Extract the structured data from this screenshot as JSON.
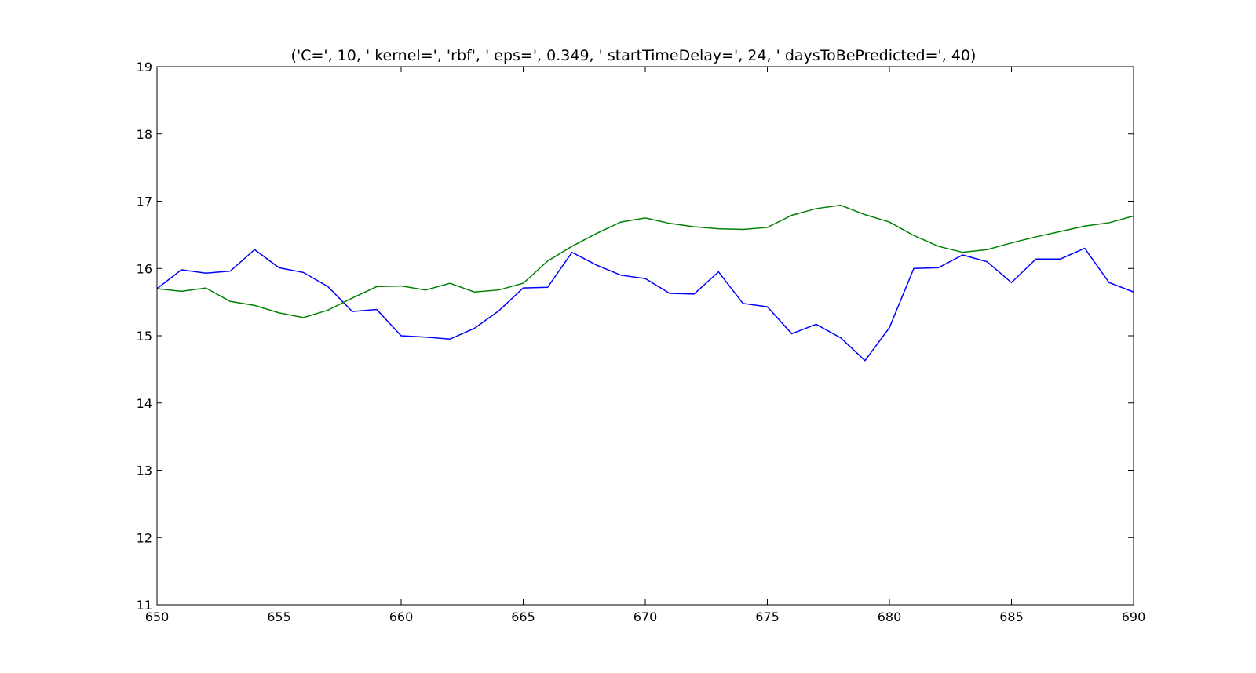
{
  "chart_data": {
    "type": "line",
    "title": "('C=', 10, ' kernel=', 'rbf', ' eps=', 0.349, ' startTimeDelay=', 24, ' daysToBePredicted=', 40)",
    "xlabel": "",
    "ylabel": "",
    "xlim": [
      650,
      690
    ],
    "ylim": [
      11,
      19
    ],
    "xticks": [
      650,
      655,
      660,
      665,
      670,
      675,
      680,
      685,
      690
    ],
    "yticks": [
      11,
      12,
      13,
      14,
      15,
      16,
      17,
      18,
      19
    ],
    "grid": false,
    "x": [
      650,
      651,
      652,
      653,
      654,
      655,
      656,
      657,
      658,
      659,
      660,
      661,
      662,
      663,
      664,
      665,
      666,
      667,
      668,
      669,
      670,
      671,
      672,
      673,
      674,
      675,
      676,
      677,
      678,
      679,
      680,
      681,
      682,
      683,
      684,
      685,
      686,
      687,
      688,
      689,
      690
    ],
    "series": [
      {
        "color": "#0000ff",
        "values": [
          15.7,
          15.98,
          15.93,
          15.96,
          16.28,
          16.01,
          15.94,
          15.73,
          15.36,
          15.39,
          15.0,
          14.98,
          14.95,
          15.11,
          15.37,
          15.71,
          15.72,
          16.24,
          16.05,
          15.9,
          15.85,
          15.63,
          15.62,
          15.95,
          15.48,
          15.43,
          15.03,
          15.17,
          14.97,
          14.63,
          15.12,
          16.0,
          16.01,
          16.2,
          16.1,
          15.79,
          16.14,
          16.14,
          16.3,
          15.79,
          15.65
        ]
      },
      {
        "color": "#008000",
        "values": [
          15.7,
          15.66,
          15.71,
          15.51,
          15.45,
          15.34,
          15.27,
          15.38,
          15.56,
          15.73,
          15.74,
          15.68,
          15.78,
          15.65,
          15.68,
          15.78,
          16.11,
          16.33,
          16.52,
          16.69,
          16.75,
          16.67,
          16.62,
          16.59,
          16.58,
          16.61,
          16.79,
          16.89,
          16.94,
          16.8,
          16.69,
          16.49,
          16.33,
          16.24,
          16.28,
          16.38,
          16.47,
          16.55,
          16.63,
          16.68,
          16.78
        ]
      }
    ]
  }
}
